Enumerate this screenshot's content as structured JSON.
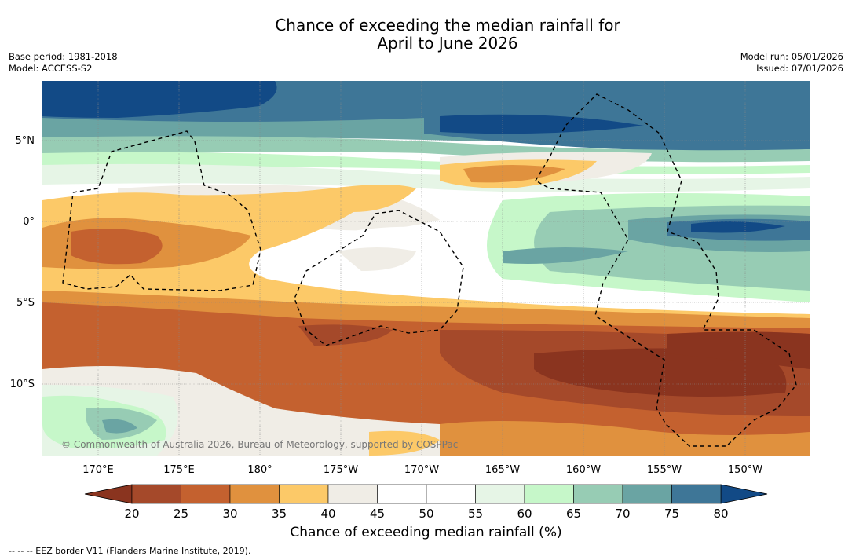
{
  "title_line1": "Chance of exceeding the median rainfall for",
  "title_line2": "April to June 2026",
  "base_period": "Base period: 1981-2018",
  "model": "Model: ACCESS-S2",
  "model_run": "Model run: 05/01/2026",
  "issued": "Issued: 07/01/2026",
  "copyright": "© Commonwealth of Australia 2026, Bureau of Meteorology, supported by COSPPac",
  "lat_labels": [
    "5°N",
    "0°",
    "5°S",
    "10°S"
  ],
  "lon_labels": [
    "170°E",
    "175°E",
    "180°",
    "175°W",
    "170°W",
    "165°W",
    "160°W",
    "155°W",
    "150°W"
  ],
  "colorbar": {
    "title": "Chance of exceeding median rainfall (%)",
    "ticks": [
      "20",
      "25",
      "30",
      "35",
      "40",
      "45",
      "50",
      "55",
      "60",
      "65",
      "70",
      "75",
      "80"
    ],
    "colors": [
      "#a5492a",
      "#c4612f",
      "#e0913e",
      "#fcc968",
      "#f0ede6",
      "#ffffff",
      "#ffffff",
      "#e6f5e6",
      "#c6f7c9",
      "#97ccb4",
      "#6aa4a3",
      "#3e7697"
    ],
    "under_color": "#8a341f",
    "over_color": "#124a86"
  },
  "eez_legend": "--  --  -- EEZ border V11 (Flanders Marine Institute, 2019)."
}
